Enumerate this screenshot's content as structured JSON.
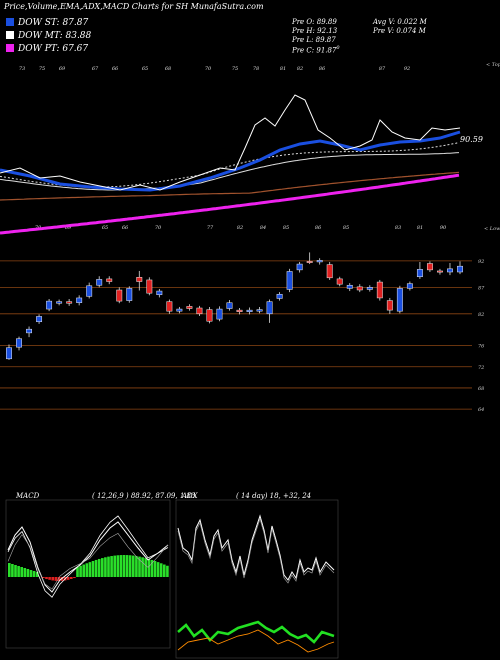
{
  "header": {
    "title": "Price,Volume,EMA,ADX,MACD Charts for SH MunafaSutra.com"
  },
  "legend": [
    {
      "label": "DOW ST: 87.87",
      "color": "#1a4fe0"
    },
    {
      "label": "DOW MT: 83.88",
      "color": "#ffffff"
    },
    {
      "label": "DOW PT: 67.67",
      "color": "#ee22ee"
    }
  ],
  "stats": {
    "pre_o": "Pre  O: 89.89",
    "pre_h": "Pre  H: 92.13",
    "pre_l": "Pre  L: 89.87",
    "pre_c": "Pre  C: 91.87",
    "c_sup": "0",
    "avg_v": "Avg V: 0.022  M",
    "pre_v": "Pre  V: 0.074 M"
  },
  "ema_panel": {
    "top_tag": "< Tops",
    "low_tag": "< Lows",
    "price_marker": "90.59",
    "top_labels": [
      "73",
      "75",
      "69",
      "67",
      "66",
      "65",
      "68",
      "70",
      "75",
      "78",
      "81",
      "82",
      "86",
      "87",
      "92"
    ],
    "low_labels": [
      "70",
      "69",
      "65",
      "66",
      "70",
      "77",
      "82",
      "84",
      "85",
      "86",
      "85",
      "83",
      "81",
      "90"
    ]
  },
  "chart_data": {
    "type": "candlestick",
    "title": "Price,Volume,EMA,ADX,MACD Charts for SH MunafaSutra.com",
    "ylabel": "",
    "price_axis_ticks": [
      92,
      87,
      82,
      76,
      72,
      68,
      64
    ],
    "ylim": [
      61,
      95
    ],
    "up_color": "#1a4fe0",
    "down_color": "#e02020",
    "candles": [
      {
        "o": 73.5,
        "c": 75.6,
        "h": 76.2,
        "l": 73.3
      },
      {
        "o": 75.7,
        "c": 77.3,
        "h": 77.7,
        "l": 75.1
      },
      {
        "o": 78.4,
        "c": 79.1,
        "h": 79.6,
        "l": 77.6
      },
      {
        "o": 80.5,
        "c": 81.5,
        "h": 81.9,
        "l": 80.1
      },
      {
        "o": 82.9,
        "c": 84.4,
        "h": 84.8,
        "l": 82.5
      },
      {
        "o": 84.0,
        "c": 84.3,
        "h": 84.7,
        "l": 83.6
      },
      {
        "o": 84.3,
        "c": 84.0,
        "h": 84.8,
        "l": 83.5
      },
      {
        "o": 84.1,
        "c": 85.0,
        "h": 85.5,
        "l": 83.6
      },
      {
        "o": 85.3,
        "c": 87.3,
        "h": 87.9,
        "l": 84.9
      },
      {
        "o": 87.4,
        "c": 88.5,
        "h": 89.1,
        "l": 87.0
      },
      {
        "o": 88.6,
        "c": 88.1,
        "h": 89.1,
        "l": 87.6
      },
      {
        "o": 86.5,
        "c": 84.4,
        "h": 87.0,
        "l": 84.0
      },
      {
        "o": 84.5,
        "c": 86.8,
        "h": 87.2,
        "l": 84.1
      },
      {
        "o": 88.9,
        "c": 88.1,
        "h": 90.1,
        "l": 86.4
      },
      {
        "o": 88.4,
        "c": 85.9,
        "h": 88.9,
        "l": 85.5
      },
      {
        "o": 85.6,
        "c": 86.3,
        "h": 86.7,
        "l": 85.1
      },
      {
        "o": 84.3,
        "c": 82.5,
        "h": 84.7,
        "l": 82.0
      },
      {
        "o": 82.5,
        "c": 82.9,
        "h": 83.3,
        "l": 82.1
      },
      {
        "o": 83.4,
        "c": 83.0,
        "h": 83.8,
        "l": 82.6
      },
      {
        "o": 83.1,
        "c": 82.0,
        "h": 83.5,
        "l": 81.6
      },
      {
        "o": 82.8,
        "c": 80.6,
        "h": 83.3,
        "l": 80.2
      },
      {
        "o": 81.0,
        "c": 82.9,
        "h": 83.4,
        "l": 80.6
      },
      {
        "o": 83.0,
        "c": 84.1,
        "h": 84.6,
        "l": 82.6
      },
      {
        "o": 82.7,
        "c": 82.4,
        "h": 83.1,
        "l": 81.9
      },
      {
        "o": 82.4,
        "c": 82.7,
        "h": 83.2,
        "l": 81.9
      },
      {
        "o": 82.5,
        "c": 82.8,
        "h": 83.3,
        "l": 82.1
      },
      {
        "o": 82.0,
        "c": 84.3,
        "h": 84.7,
        "l": 80.3
      },
      {
        "o": 84.9,
        "c": 85.7,
        "h": 86.1,
        "l": 84.5
      },
      {
        "o": 86.6,
        "c": 90.0,
        "h": 90.5,
        "l": 86.1
      },
      {
        "o": 90.3,
        "c": 91.4,
        "h": 91.8,
        "l": 89.8
      },
      {
        "o": 91.9,
        "c": 91.8,
        "h": 93.6,
        "l": 91.4
      },
      {
        "o": 91.8,
        "c": 92.1,
        "h": 92.5,
        "l": 91.3
      },
      {
        "o": 91.3,
        "c": 88.8,
        "h": 91.8,
        "l": 88.4
      },
      {
        "o": 88.6,
        "c": 87.6,
        "h": 89.0,
        "l": 87.2
      },
      {
        "o": 86.8,
        "c": 87.4,
        "h": 87.8,
        "l": 86.3
      },
      {
        "o": 87.1,
        "c": 86.5,
        "h": 87.6,
        "l": 86.1
      },
      {
        "o": 86.6,
        "c": 87.0,
        "h": 87.4,
        "l": 86.2
      },
      {
        "o": 88.0,
        "c": 85.0,
        "h": 88.4,
        "l": 84.5
      },
      {
        "o": 84.5,
        "c": 82.7,
        "h": 85.0,
        "l": 82.0
      },
      {
        "o": 82.5,
        "c": 86.8,
        "h": 87.3,
        "l": 82.1
      },
      {
        "o": 86.8,
        "c": 87.7,
        "h": 88.1,
        "l": 86.4
      },
      {
        "o": 89.0,
        "c": 90.4,
        "h": 91.8,
        "l": 88.6
      },
      {
        "o": 91.5,
        "c": 90.3,
        "h": 91.9,
        "l": 89.9
      },
      {
        "o": 90.1,
        "c": 89.9,
        "h": 90.5,
        "l": 89.4
      },
      {
        "o": 89.9,
        "c": 90.5,
        "h": 91.6,
        "l": 89.3
      },
      {
        "o": 89.9,
        "c": 91.0,
        "h": 91.9,
        "l": 89.5
      }
    ]
  },
  "macd_panel": {
    "label": "MACD",
    "params": "( 12,26,9 ) 88.92,  87.09,  1.83"
  },
  "adx_panel": {
    "label": "ADX",
    "params": "( 14  day) 18,  +32,  24"
  }
}
